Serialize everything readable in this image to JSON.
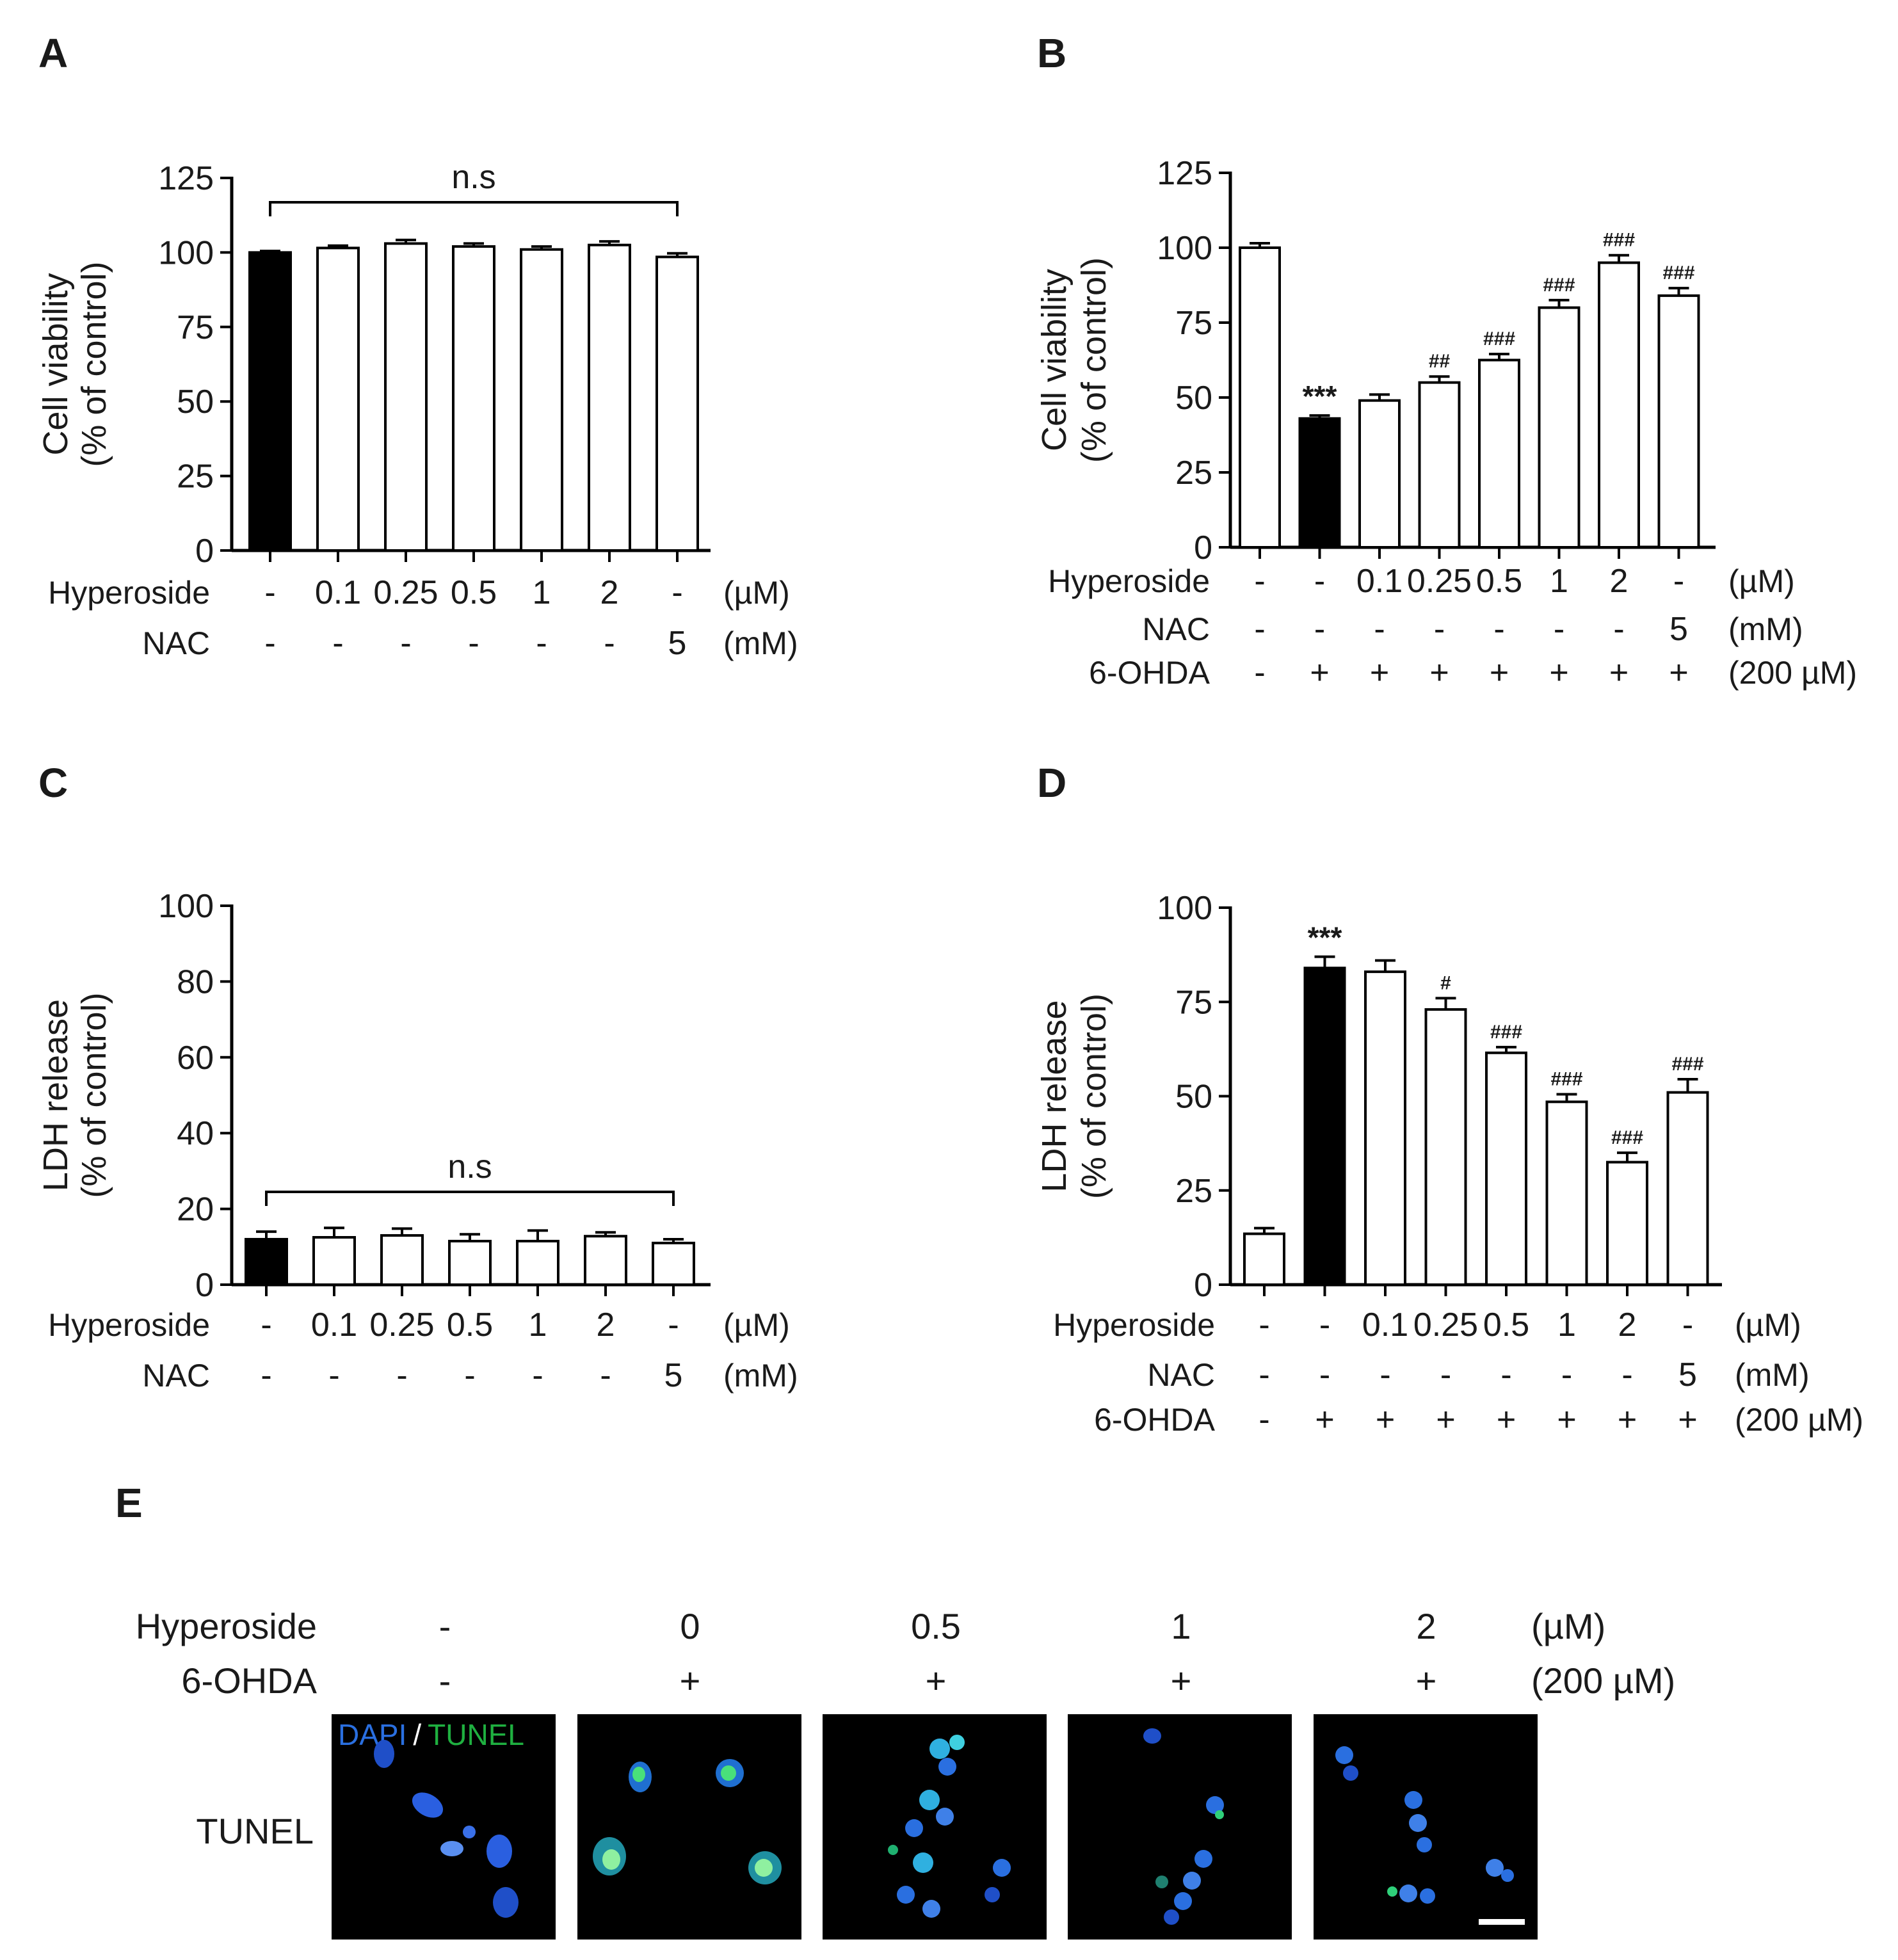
{
  "panels": {
    "A": "A",
    "B": "B",
    "C": "C",
    "D": "D",
    "E": "E"
  },
  "chart_data": [
    {
      "id": "A",
      "type": "bar",
      "ylabel_line1": "Cell viability",
      "ylabel_line2": "(% of control)",
      "ylim": [
        0,
        125
      ],
      "yticks": [
        0,
        25,
        50,
        75,
        100,
        125
      ],
      "values": [
        100,
        101.5,
        103,
        102,
        101,
        102.5,
        98.5
      ],
      "errors": [
        0.5,
        0.8,
        1.2,
        1.0,
        1.0,
        1.2,
        1.2
      ],
      "filled": [
        true,
        false,
        false,
        false,
        false,
        false,
        false
      ],
      "significance": [
        "",
        "",
        "",
        "",
        "",
        "",
        ""
      ],
      "bracket_label": "n.s",
      "conditions": [
        {
          "label": "Hyperoside",
          "values": [
            "-",
            "0.1",
            "0.25",
            "0.5",
            "1",
            "2",
            "-"
          ],
          "unit": "(µM)"
        },
        {
          "label": "NAC",
          "values": [
            "-",
            "-",
            "-",
            "-",
            "-",
            "-",
            "5"
          ],
          "unit": "(mM)"
        }
      ]
    },
    {
      "id": "B",
      "type": "bar",
      "ylabel_line1": "Cell viability",
      "ylabel_line2": "(% of control)",
      "ylim": [
        0,
        125
      ],
      "yticks": [
        0,
        25,
        50,
        75,
        100,
        125
      ],
      "values": [
        100,
        43,
        49,
        55,
        62.5,
        80,
        95,
        84
      ],
      "errors": [
        1.5,
        1.0,
        2.0,
        2.0,
        2.0,
        2.5,
        2.5,
        2.5
      ],
      "filled": [
        false,
        true,
        false,
        false,
        false,
        false,
        false,
        false
      ],
      "significance": [
        "",
        "***",
        "",
        "##",
        "###",
        "###",
        "###",
        "###"
      ],
      "conditions": [
        {
          "label": "Hyperoside",
          "values": [
            "-",
            "-",
            "0.1",
            "0.25",
            "0.5",
            "1",
            "2",
            "-"
          ],
          "unit": "(µM)"
        },
        {
          "label": "NAC",
          "values": [
            "-",
            "-",
            "-",
            "-",
            "-",
            "-",
            "-",
            "5"
          ],
          "unit": "(mM)"
        },
        {
          "label": "6-OHDA",
          "values": [
            "-",
            "+",
            "+",
            "+",
            "+",
            "+",
            "+",
            "+"
          ],
          "unit": "(200 µM)"
        }
      ]
    },
    {
      "id": "C",
      "type": "bar",
      "ylabel_line1": "LDH release",
      "ylabel_line2": "(% of control)",
      "ylim": [
        0,
        100
      ],
      "yticks": [
        0,
        20,
        40,
        60,
        80,
        100
      ],
      "values": [
        12,
        12.5,
        13,
        11.5,
        11.5,
        12.8,
        11
      ],
      "errors": [
        2.0,
        2.5,
        1.8,
        1.8,
        2.8,
        1.0,
        1.0
      ],
      "filled": [
        true,
        false,
        false,
        false,
        false,
        false,
        false
      ],
      "significance": [
        "",
        "",
        "",
        "",
        "",
        "",
        ""
      ],
      "bracket_label": "n.s",
      "conditions": [
        {
          "label": "Hyperoside",
          "values": [
            "-",
            "0.1",
            "0.25",
            "0.5",
            "1",
            "2",
            "-"
          ],
          "unit": "(µM)"
        },
        {
          "label": "NAC",
          "values": [
            "-",
            "-",
            "-",
            "-",
            "-",
            "-",
            "5"
          ],
          "unit": "(mM)"
        }
      ]
    },
    {
      "id": "D",
      "type": "bar",
      "ylabel_line1": "LDH release",
      "ylabel_line2": "(% of control)",
      "ylim": [
        0,
        100
      ],
      "yticks": [
        0,
        25,
        50,
        75,
        100
      ],
      "values": [
        13.5,
        84,
        83,
        73,
        61.5,
        48.5,
        32.5,
        51
      ],
      "errors": [
        1.5,
        3.0,
        3.0,
        3.0,
        1.5,
        2.0,
        2.5,
        3.5
      ],
      "filled": [
        false,
        true,
        false,
        false,
        false,
        false,
        false,
        false
      ],
      "significance": [
        "",
        "***",
        "",
        "#",
        "###",
        "###",
        "###",
        "###"
      ],
      "conditions": [
        {
          "label": "Hyperoside",
          "values": [
            "-",
            "-",
            "0.1",
            "0.25",
            "0.5",
            "1",
            "2",
            "-"
          ],
          "unit": "(µM)"
        },
        {
          "label": "NAC",
          "values": [
            "-",
            "-",
            "-",
            "-",
            "-",
            "-",
            "-",
            "5"
          ],
          "unit": "(mM)"
        },
        {
          "label": "6-OHDA",
          "values": [
            "-",
            "+",
            "+",
            "+",
            "+",
            "+",
            "+",
            "+"
          ],
          "unit": "(200 µM)"
        }
      ]
    }
  ],
  "panel_e": {
    "hyperoside_label": "Hyperoside",
    "hyperoside_values": [
      "-",
      "0",
      "0.5",
      "1",
      "2"
    ],
    "hyperoside_unit": "(µM)",
    "ohda_label": "6-OHDA",
    "ohda_values": [
      "-",
      "+",
      "+",
      "+",
      "+"
    ],
    "ohda_unit": "(200 µM)",
    "row_label": "TUNEL",
    "legend_dapi": "DAPI",
    "legend_sep": "/",
    "legend_tunel": "TUNEL",
    "colors": {
      "dapi": "#2a6fe0",
      "tunel": "#1fb040",
      "background": "#000000"
    }
  }
}
